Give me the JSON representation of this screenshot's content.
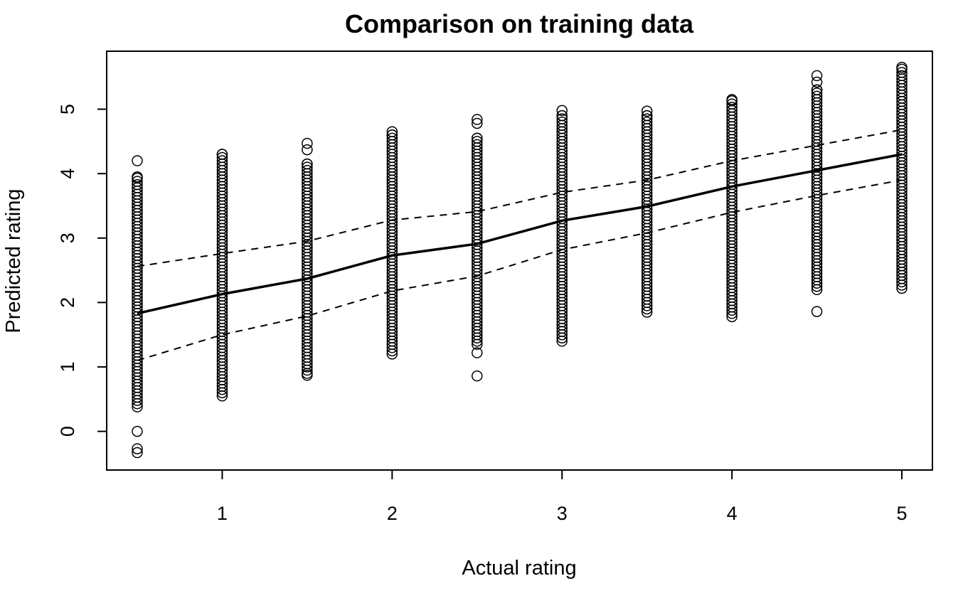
{
  "chart_data": {
    "type": "scatter",
    "title": "Comparison on training data",
    "xlabel": "Actual rating",
    "ylabel": "Predicted rating",
    "xlim": [
      0.32,
      5.18
    ],
    "ylim": [
      -0.6,
      5.9
    ],
    "x_ticks": [
      1,
      2,
      3,
      4,
      5
    ],
    "y_ticks": [
      0,
      1,
      2,
      3,
      4,
      5
    ],
    "x_tick_labels": [
      "1",
      "2",
      "3",
      "4",
      "5"
    ],
    "y_tick_labels": [
      "0",
      "1",
      "2",
      "3",
      "4",
      "5"
    ],
    "grid": false,
    "legend": "none",
    "point_columns": [
      {
        "x": 0.5,
        "dense_min": 0.38,
        "dense_max": 3.95,
        "outliers": [
          -0.33,
          -0.27,
          0.0,
          4.2
        ]
      },
      {
        "x": 1.0,
        "dense_min": 0.55,
        "dense_max": 4.3,
        "outliers": []
      },
      {
        "x": 1.5,
        "dense_min": 0.9,
        "dense_max": 4.15,
        "outliers": [
          0.87,
          4.37,
          4.47
        ]
      },
      {
        "x": 2.0,
        "dense_min": 1.2,
        "dense_max": 4.6,
        "outliers": [
          4.65
        ]
      },
      {
        "x": 2.5,
        "dense_min": 1.35,
        "dense_max": 4.55,
        "outliers": [
          0.86,
          1.22,
          4.78,
          4.84
        ]
      },
      {
        "x": 3.0,
        "dense_min": 1.4,
        "dense_max": 4.9,
        "outliers": [
          4.98
        ]
      },
      {
        "x": 3.5,
        "dense_min": 1.85,
        "dense_max": 4.9,
        "outliers": [
          4.97
        ]
      },
      {
        "x": 4.0,
        "dense_min": 1.78,
        "dense_max": 5.15,
        "outliers": []
      },
      {
        "x": 4.5,
        "dense_min": 2.2,
        "dense_max": 5.3,
        "outliers": [
          1.86,
          5.42,
          5.52
        ]
      },
      {
        "x": 5.0,
        "dense_min": 2.22,
        "dense_max": 5.65,
        "outliers": []
      }
    ],
    "series": [
      {
        "line_style": "solid",
        "x": [
          0.5,
          1.0,
          1.5,
          2.0,
          2.5,
          3.0,
          3.5,
          4.0,
          4.5,
          5.0
        ],
        "values": [
          1.83,
          2.13,
          2.37,
          2.73,
          2.91,
          3.27,
          3.49,
          3.8,
          4.05,
          4.3
        ]
      },
      {
        "line_style": "dashed",
        "x": [
          0.5,
          1.0,
          1.5,
          2.0,
          2.5,
          3.0,
          3.5,
          4.0,
          4.5,
          5.0
        ],
        "values": [
          2.56,
          2.76,
          2.95,
          3.28,
          3.41,
          3.71,
          3.9,
          4.2,
          4.44,
          4.68
        ]
      },
      {
        "line_style": "dashed",
        "x": [
          0.5,
          1.0,
          1.5,
          2.0,
          2.5,
          3.0,
          3.5,
          4.0,
          4.5,
          5.0
        ],
        "values": [
          1.1,
          1.5,
          1.79,
          2.18,
          2.41,
          2.82,
          3.08,
          3.4,
          3.66,
          3.9
        ]
      }
    ]
  }
}
